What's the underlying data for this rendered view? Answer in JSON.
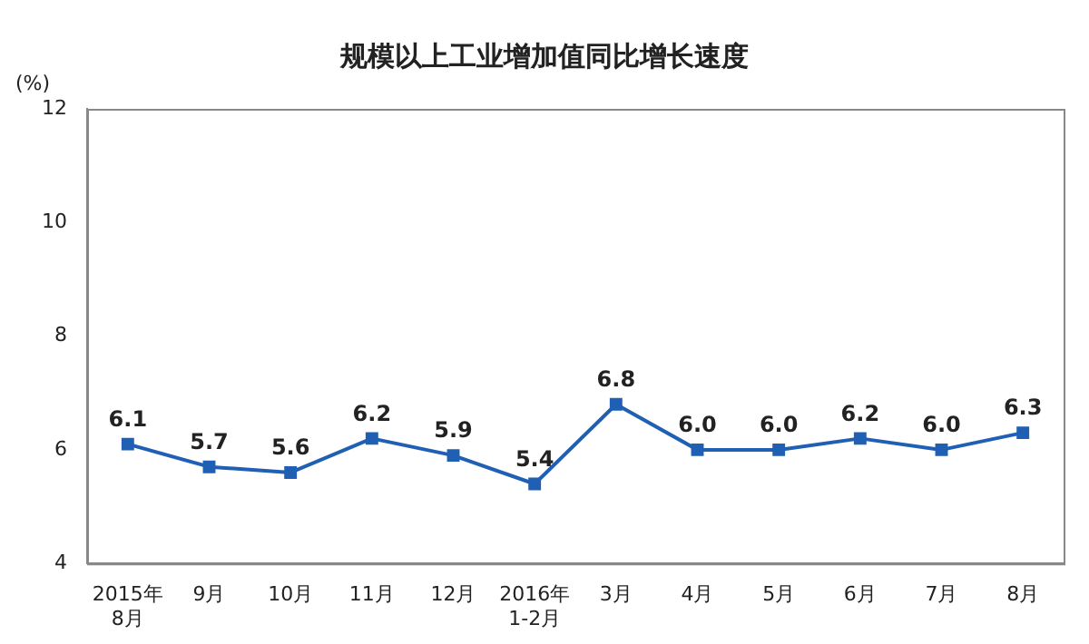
{
  "chart_data": {
    "type": "line",
    "title": "规模以上工业增加值同比增长速度",
    "ylabel": "(%)",
    "categories": [
      "2015年\n8月",
      "9月",
      "10月",
      "11月",
      "12月",
      "2016年\n1-2月",
      "3月",
      "4月",
      "5月",
      "6月",
      "7月",
      "8月"
    ],
    "series": [
      {
        "color": "#1f5fb4",
        "values": [
          6.1,
          5.7,
          5.6,
          6.2,
          5.9,
          5.4,
          6.8,
          6.0,
          6.0,
          6.2,
          6.0,
          6.3
        ],
        "value_labels": [
          "6.1",
          "5.7",
          "5.6",
          "6.2",
          "5.9",
          "5.4",
          "6.8",
          "6.0",
          "6.0",
          "6.2",
          "6.0",
          "6.3"
        ]
      }
    ],
    "ylim": [
      4,
      12
    ],
    "yticks": [
      4,
      6,
      8,
      10,
      12
    ],
    "grid": false,
    "legend": false,
    "marker": "square",
    "line_style": "solid"
  }
}
